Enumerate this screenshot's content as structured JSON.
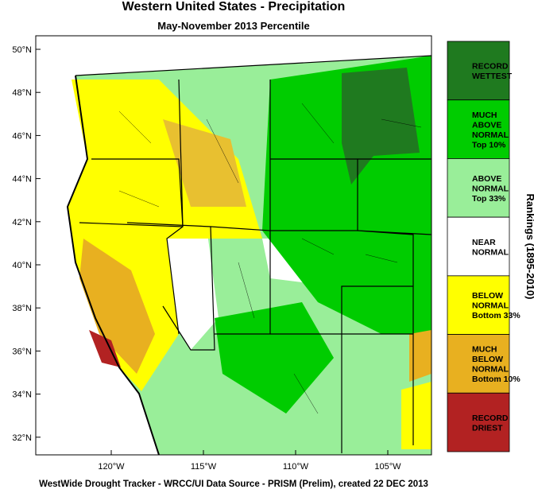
{
  "header": {
    "title": "Western United States - Precipitation",
    "subtitle": "May-November 2013 Percentile"
  },
  "map": {
    "lat_labels": [
      "50°N",
      "48°N",
      "46°N",
      "44°N",
      "42°N",
      "40°N",
      "38°N",
      "36°N",
      "34°N",
      "32°N"
    ],
    "lon_labels": [
      "120°W",
      "115°W",
      "110°W",
      "105°W"
    ]
  },
  "legend": {
    "title": "Rankings (1895-2010)",
    "items": [
      {
        "lines": [
          "RECORD",
          "WETTEST"
        ],
        "color": "#1f7a1f"
      },
      {
        "lines": [
          "MUCH",
          "ABOVE",
          "NORMAL",
          "Top 10%"
        ],
        "color": "#00cc00"
      },
      {
        "lines": [
          "ABOVE",
          "NORMAL",
          "Top 33%"
        ],
        "color": "#99ee99"
      },
      {
        "lines": [
          "NEAR",
          "NORMAL"
        ],
        "color": "#ffffff"
      },
      {
        "lines": [
          "BELOW",
          "NORMAL",
          "Bottom 33%"
        ],
        "color": "#ffff00"
      },
      {
        "lines": [
          "MUCH",
          "BELOW",
          "NORMAL",
          "Bottom 10%"
        ],
        "color": "#e8b020"
      },
      {
        "lines": [
          "RECORD",
          "DRIEST"
        ],
        "color": "#b22222"
      }
    ]
  },
  "footer": "WestWide Drought Tracker - WRCC/UI  Data Source - PRISM (Prelim), created 22 DEC 2013"
}
